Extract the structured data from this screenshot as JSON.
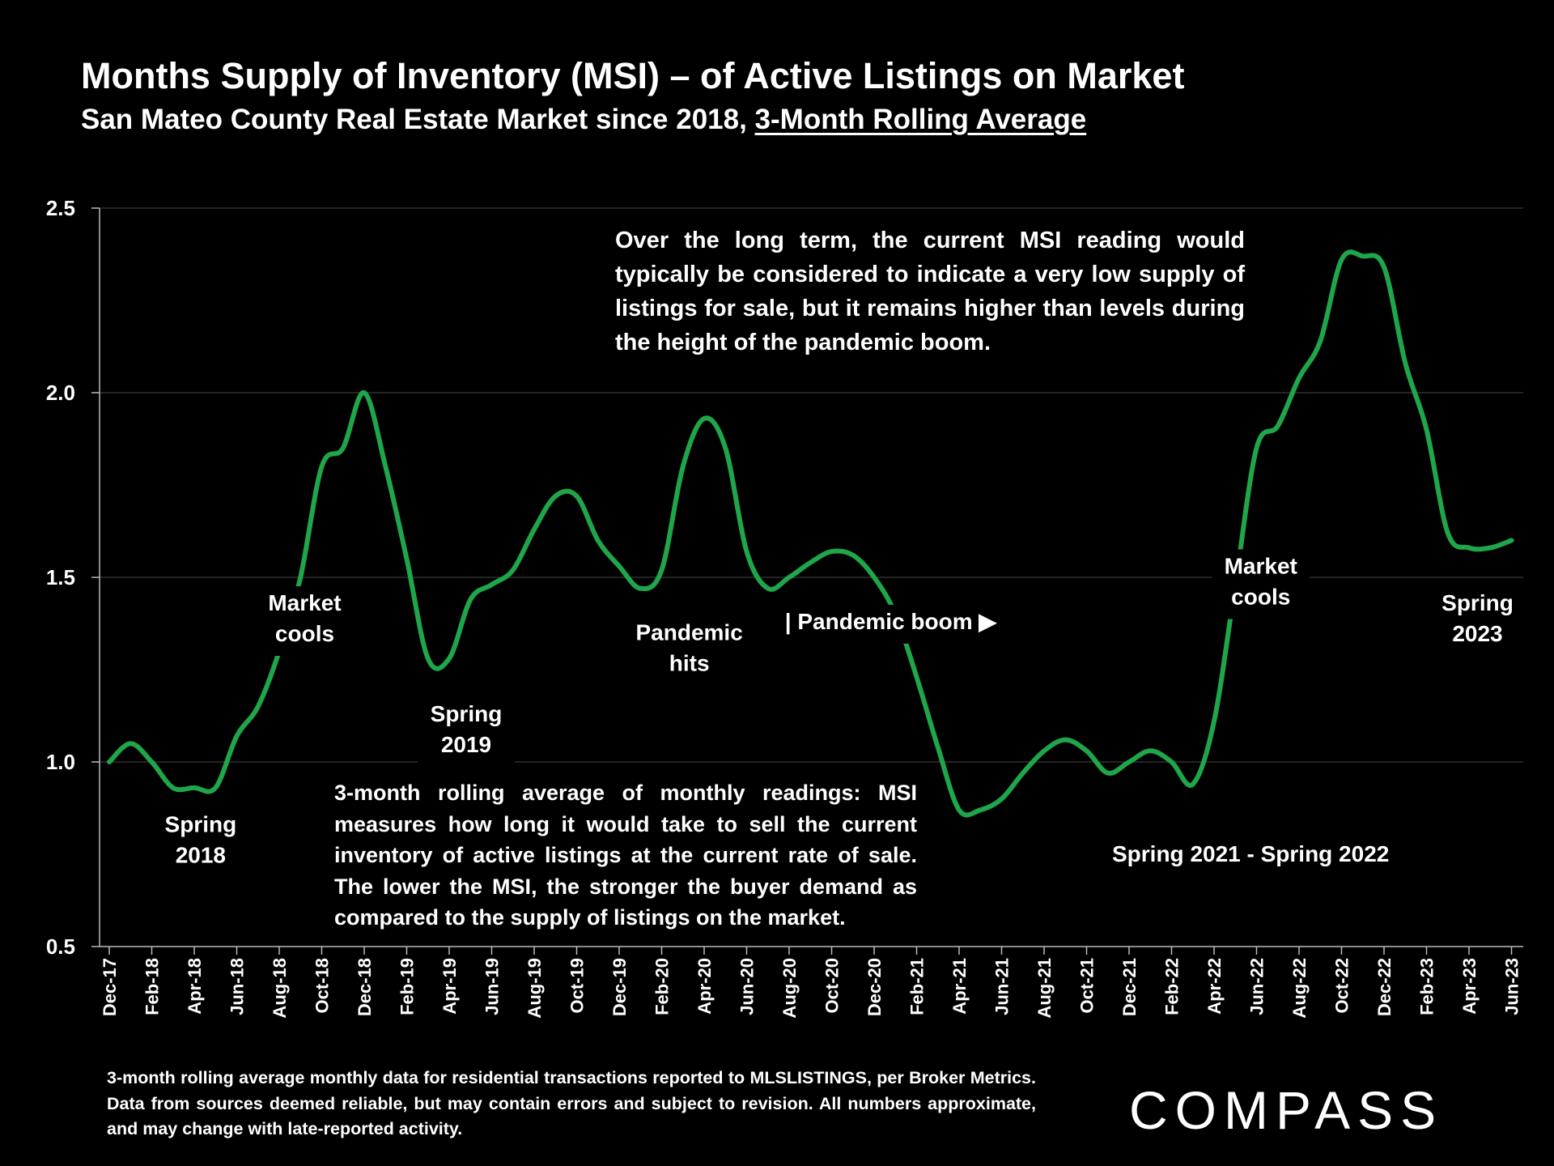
{
  "header": {
    "title": "Months Supply of Inventory (MSI) – of Active Listings on Market",
    "subtitle_prefix": "San Mateo County Real Estate Market since 2018, ",
    "subtitle_underlined": "3-Month Rolling Average"
  },
  "notes": {
    "top": "Over the long term, the current MSI reading would typically be considered to indicate a very low supply of listings for sale, but it remains higher than levels during the height of the pandemic boom.",
    "middle": "3-month rolling average of monthly readings: MSI measures how long it would take to sell the current inventory of active listings at the current rate of sale. The lower the MSI, the stronger the buyer demand as compared to the supply of listings on the market."
  },
  "footnote": "3-month rolling average monthly data for residential transactions reported to MLSLISTINGS, per Broker Metrics. Data from sources deemed reliable, but may contain errors and subject to revision. All numbers approximate, and may change with late-reported activity.",
  "logo": "COMPASS",
  "colors": {
    "line": "#1fa64a",
    "background": "#000000",
    "text": "#ffffff",
    "grid": "#3a3a3a"
  },
  "chart_data": {
    "type": "line",
    "title": "Months Supply of Inventory (MSI) – of Active Listings on Market",
    "xlabel": "",
    "ylabel": "",
    "ylim": [
      0.5,
      2.5
    ],
    "yticks": [
      "0.5",
      "1.0",
      "1.5",
      "2.0",
      "2.5"
    ],
    "grid": true,
    "x_tick_labels": [
      "Dec-17",
      "Feb-18",
      "Apr-18",
      "Jun-18",
      "Aug-18",
      "Oct-18",
      "Dec-18",
      "Feb-19",
      "Apr-19",
      "Jun-19",
      "Aug-19",
      "Oct-19",
      "Dec-19",
      "Feb-20",
      "Apr-20",
      "Jun-20",
      "Aug-20",
      "Oct-20",
      "Dec-20",
      "Feb-21",
      "Apr-21",
      "Jun-21",
      "Aug-21",
      "Oct-21",
      "Dec-21",
      "Feb-22",
      "Apr-22",
      "Jun-22",
      "Aug-22",
      "Oct-22",
      "Dec-22",
      "Feb-23",
      "Apr-23",
      "Jun-23"
    ],
    "series": [
      {
        "name": "MSI 3-month rolling average",
        "values": [
          1.0,
          1.05,
          1.0,
          0.93,
          0.93,
          0.93,
          1.07,
          1.15,
          1.3,
          1.5,
          1.8,
          1.85,
          2.0,
          1.8,
          1.55,
          1.28,
          1.28,
          1.44,
          1.48,
          1.52,
          1.63,
          1.72,
          1.72,
          1.6,
          1.53,
          1.47,
          1.52,
          1.8,
          1.93,
          1.85,
          1.57,
          1.47,
          1.5,
          1.54,
          1.57,
          1.56,
          1.5,
          1.4,
          1.23,
          1.04,
          0.87,
          0.87,
          0.9,
          0.97,
          1.03,
          1.06,
          1.03,
          0.97,
          1.0,
          1.03,
          1.0,
          0.94,
          1.11,
          1.48,
          1.85,
          1.91,
          2.04,
          2.14,
          2.36,
          2.37,
          2.34,
          2.08,
          1.9,
          1.62,
          1.58,
          1.58,
          1.6
        ]
      }
    ],
    "annotations": [
      {
        "text": [
          "Spring",
          "2018"
        ],
        "x_month": 4.3,
        "y": 0.81
      },
      {
        "text": [
          "Market",
          "cools"
        ],
        "x_month": 9.2,
        "y": 1.41
      },
      {
        "text": [
          "Spring",
          "2019"
        ],
        "x_month": 16.8,
        "y": 1.11
      },
      {
        "text": [
          "Pandemic",
          "hits"
        ],
        "x_month": 27.3,
        "y": 1.33
      },
      {
        "text": [
          "| Pandemic boom ▶"
        ],
        "x_month": 31.8,
        "y": 1.36
      },
      {
        "text": [
          "Spring 2021 - Spring 2022"
        ],
        "x_month": 47.2,
        "y": 0.73
      },
      {
        "text": [
          "Market",
          "cools"
        ],
        "x_month": 54.2,
        "y": 1.51
      },
      {
        "text": [
          "Spring",
          "2023"
        ],
        "x_month": 64.4,
        "y": 1.41
      }
    ]
  }
}
